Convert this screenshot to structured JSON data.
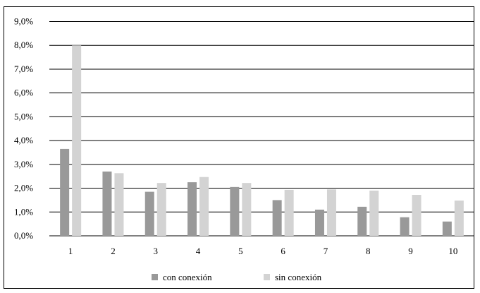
{
  "chart_data": {
    "type": "bar",
    "categories": [
      "1",
      "2",
      "3",
      "4",
      "5",
      "6",
      "7",
      "8",
      "9",
      "10"
    ],
    "series": [
      {
        "name": "con conexión",
        "color": "#999999",
        "values": [
          3.65,
          2.7,
          1.85,
          2.25,
          2.05,
          1.5,
          1.1,
          1.22,
          0.78,
          0.6
        ]
      },
      {
        "name": "sin conexión",
        "color": "#d3d3d3",
        "values": [
          8.0,
          2.63,
          2.22,
          2.47,
          2.22,
          1.93,
          1.95,
          1.9,
          1.72,
          1.48
        ]
      }
    ],
    "y_ticks": [
      "0,0%",
      "1,0%",
      "2,0%",
      "3,0%",
      "4,0%",
      "5,0%",
      "6,0%",
      "7,0%",
      "8,0%",
      "9,0%"
    ],
    "ylim": [
      0,
      9
    ],
    "grid": true,
    "legend_position": "bottom"
  }
}
